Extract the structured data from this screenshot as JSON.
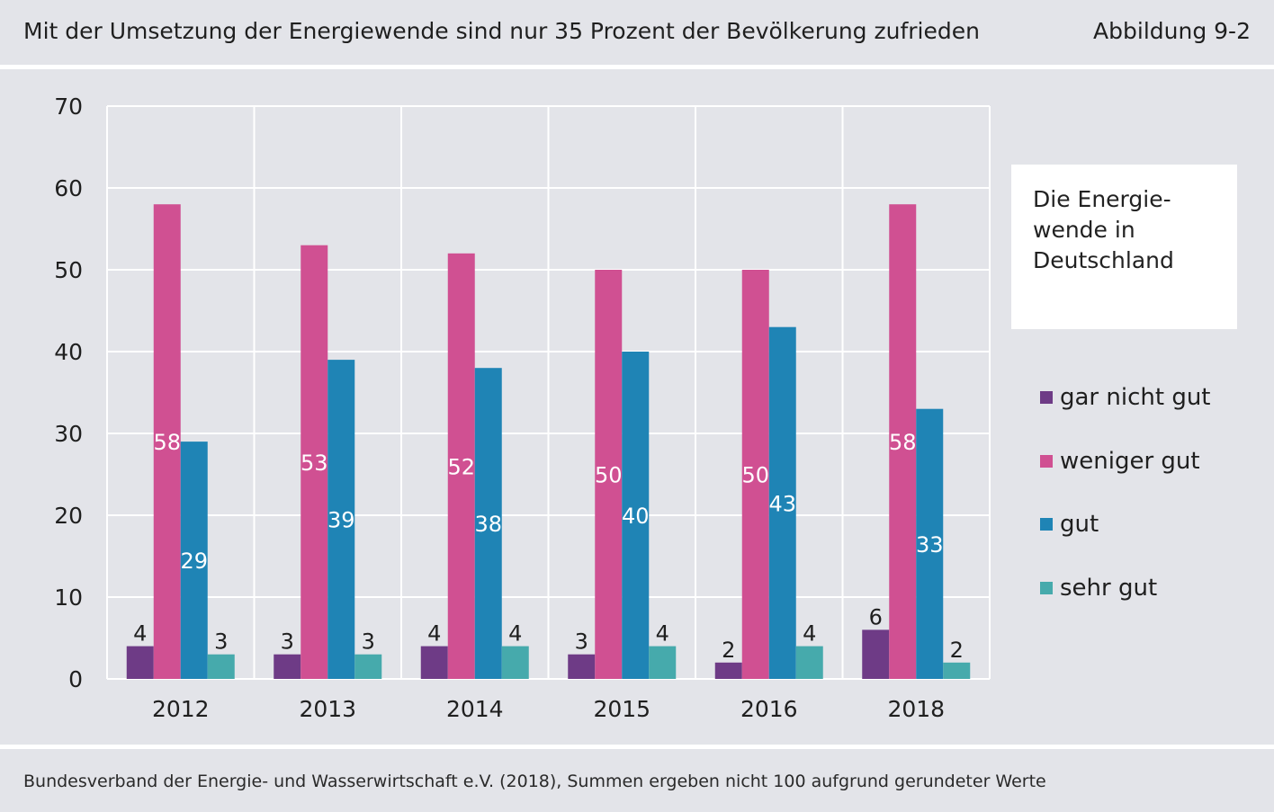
{
  "header": {
    "title": "Mit der Umsetzung der Energiewende sind nur 35 Prozent der Bevölkerung zufrieden",
    "figure_number": "Abbildung 9-2"
  },
  "legend": {
    "title": "Die Energie-wende in Deutschland",
    "title_lines": [
      "Die Energie-",
      "wende in",
      "Deutschland"
    ]
  },
  "footer": {
    "source": "Bundesverband der Energie- und Wasserwirtschaft e.V. (2018), Summen ergeben nicht 100 aufgrund gerundeter Werte"
  },
  "chart_data": {
    "type": "bar",
    "categories": [
      "2012",
      "2013",
      "2014",
      "2015",
      "2016",
      "2018"
    ],
    "series": [
      {
        "name": "gar nicht gut",
        "color": "#6e3b86",
        "values": [
          4,
          3,
          4,
          3,
          2,
          6
        ]
      },
      {
        "name": "weniger gut",
        "color": "#d05092",
        "values": [
          58,
          53,
          52,
          50,
          50,
          58
        ]
      },
      {
        "name": "gut",
        "color": "#1f84b5",
        "values": [
          29,
          39,
          38,
          40,
          43,
          33
        ]
      },
      {
        "name": "sehr gut",
        "color": "#46aaac",
        "values": [
          3,
          3,
          4,
          4,
          4,
          2
        ]
      }
    ],
    "ylim": [
      0,
      70
    ],
    "yticks": [
      0,
      10,
      20,
      30,
      40,
      50,
      60,
      70
    ],
    "grid": true,
    "legend_placement": "right",
    "xlabel": "",
    "ylabel": ""
  }
}
